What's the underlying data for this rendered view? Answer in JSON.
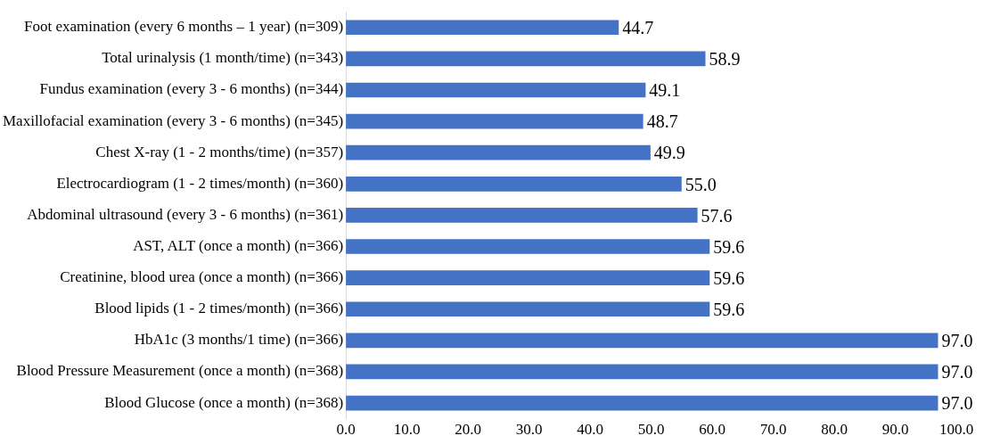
{
  "chart_data": {
    "type": "bar",
    "orientation": "horizontal",
    "categories": [
      "Foot examination (every 6 months – 1 year) (n=309)",
      "Total urinalysis (1 month/time) (n=343)",
      "Fundus examination (every 3 - 6 months) (n=344)",
      "Maxillofacial examination (every 3 - 6 months) (n=345)",
      "Chest X-ray (1 - 2 months/time) (n=357)",
      "Electrocardiogram (1 - 2 times/month) (n=360)",
      "Abdominal ultrasound (every 3 - 6 months) (n=361)",
      "AST, ALT (once a month) (n=366)",
      "Creatinine, blood urea (once a month) (n=366)",
      "Blood lipids (1 - 2 times/month) (n=366)",
      "HbA1c (3 months/1 time) (n=366)",
      "Blood Pressure Measurement (once a month) (n=368)",
      "Blood Glucose (once a month) (n=368)"
    ],
    "values": [
      44.7,
      58.9,
      49.1,
      48.7,
      49.9,
      55.0,
      57.6,
      59.6,
      59.6,
      59.6,
      97.0,
      97.0,
      97.0
    ],
    "value_labels": [
      "44.7",
      "58.9",
      "49.1",
      "48.7",
      "49.9",
      "55.0",
      "57.6",
      "59.6",
      "59.6",
      "59.6",
      "97.0",
      "97.0",
      "97.0"
    ],
    "color": "#4472c4",
    "xlim": [
      0,
      100
    ],
    "xticks": [
      {
        "value": 0,
        "label": "0.0"
      },
      {
        "value": 10,
        "label": "10.0"
      },
      {
        "value": 20,
        "label": "20.0"
      },
      {
        "value": 30,
        "label": "30.0"
      },
      {
        "value": 40,
        "label": "40.0"
      },
      {
        "value": 50,
        "label": "50.0"
      },
      {
        "value": 60,
        "label": "60.0"
      },
      {
        "value": 70,
        "label": "70.0"
      },
      {
        "value": 80,
        "label": "80.0"
      },
      {
        "value": 90,
        "label": "90.0"
      },
      {
        "value": 100,
        "label": "100.0"
      }
    ],
    "grid": false,
    "legend": false
  }
}
